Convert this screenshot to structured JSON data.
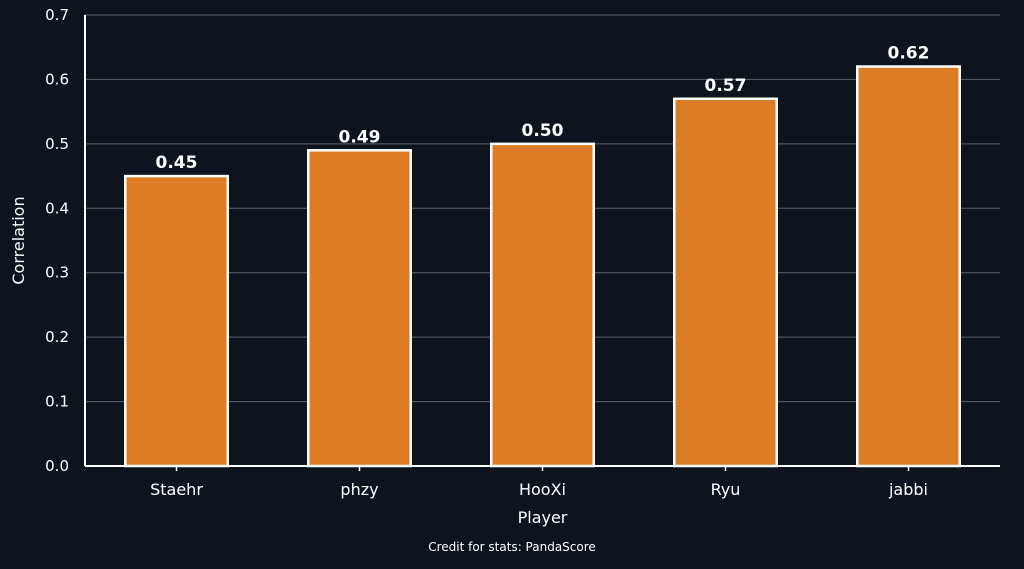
{
  "colors": {
    "background": "#0d141e",
    "bar_fill": "#dd7c27",
    "bar_stroke": "#ffffff",
    "grid": "#5a6470",
    "text": "#ffffff"
  },
  "chart_data": {
    "type": "bar",
    "title": "",
    "xlabel": "Player",
    "ylabel": "Correlation",
    "categories": [
      "Staehr",
      "phzy",
      "HooXi",
      "Ryu",
      "jabbi"
    ],
    "values": [
      0.45,
      0.49,
      0.5,
      0.57,
      0.62
    ],
    "value_labels": [
      "0.45",
      "0.49",
      "0.50",
      "0.57",
      "0.62"
    ],
    "ylim": [
      0,
      0.7
    ],
    "yticks": [
      0.0,
      0.1,
      0.2,
      0.3,
      0.4,
      0.5,
      0.6,
      0.7
    ],
    "ytick_labels": [
      "0.0",
      "0.1",
      "0.2",
      "0.3",
      "0.4",
      "0.5",
      "0.6",
      "0.7"
    ],
    "grid": true
  },
  "footer": {
    "credit": "Credit for stats: PandaScore"
  }
}
